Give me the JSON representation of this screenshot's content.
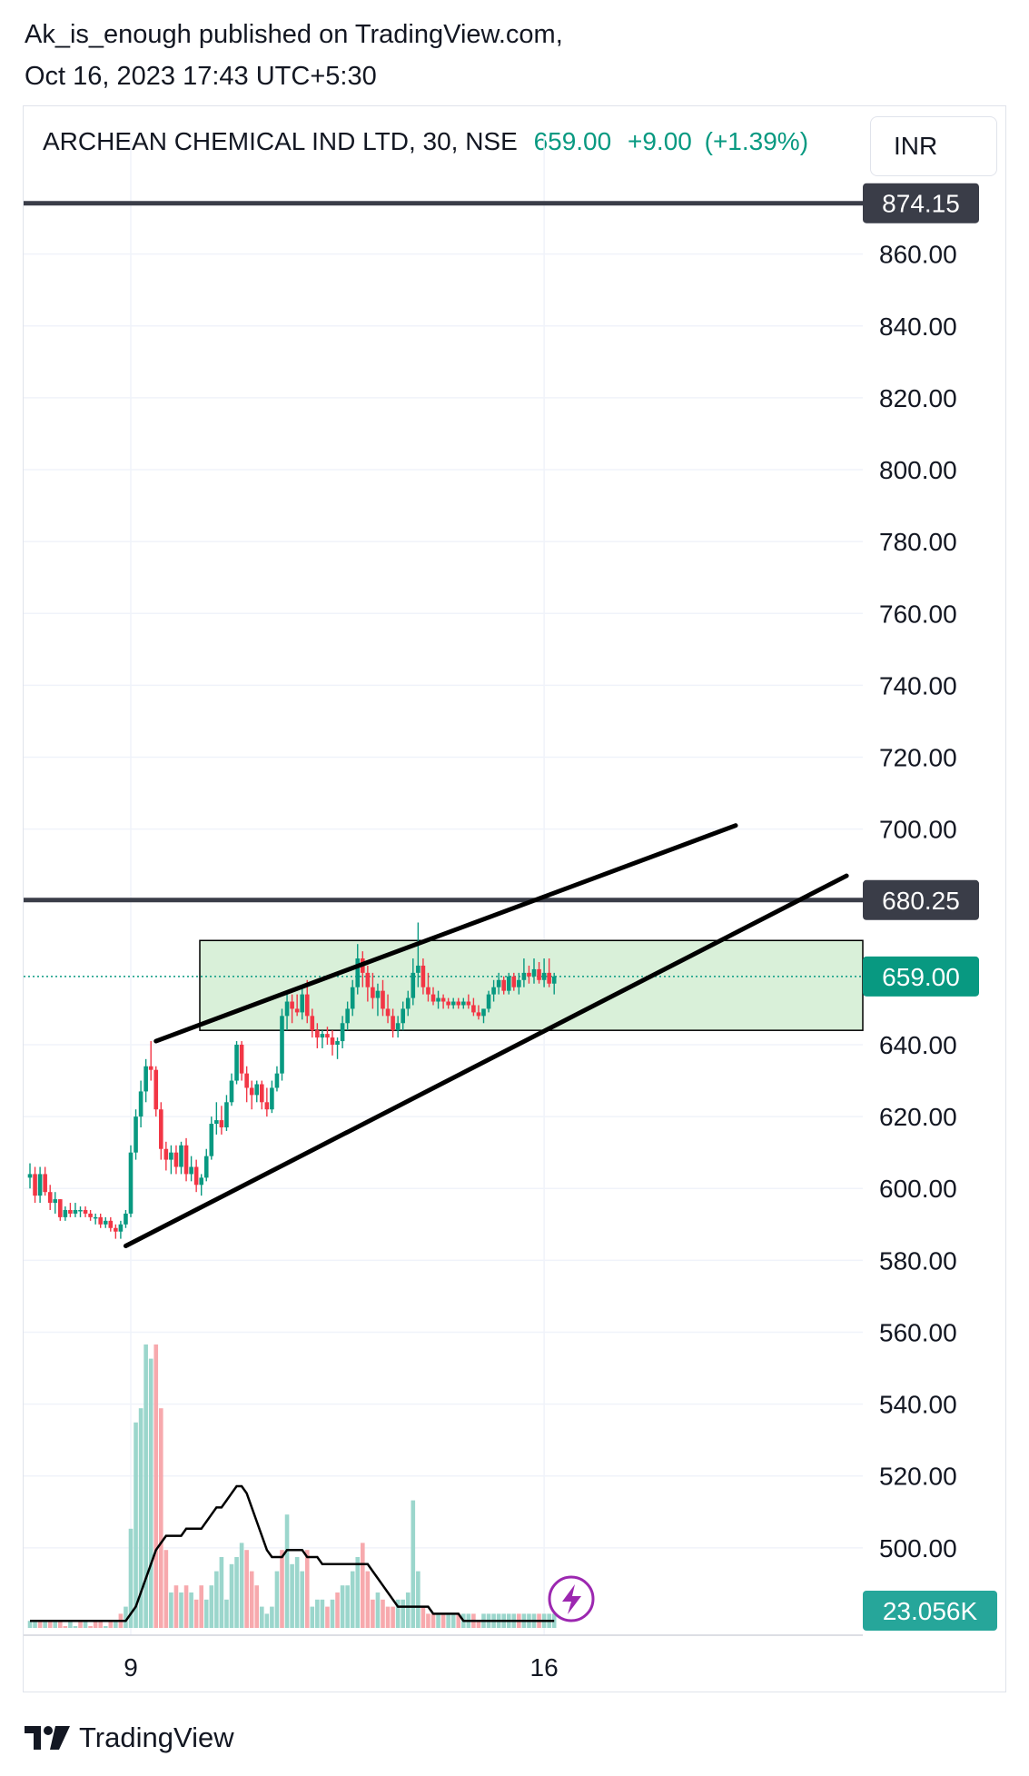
{
  "header": {
    "published_line": "Ak_is_enough published on TradingView.com,",
    "date_line": "Oct 16, 2023 17:43 UTC+5:30"
  },
  "legend": {
    "symbol": "ARCHEAN CHEMICAL IND LTD, 30, NSE",
    "last": "659.00",
    "change": "+9.00",
    "change_pct": "(+1.39%)",
    "currency": "INR"
  },
  "colors": {
    "up": "#089981",
    "down": "#f23645",
    "up_volume": "#9bd6cc",
    "down_volume": "#f7a9ad",
    "rect_fill": "#d9f0d9",
    "level_line": "#3a3d48",
    "grid": "#f0f3fa"
  },
  "chart_data": {
    "type": "candlestick",
    "y_axis_labels": [
      "860.00",
      "840.00",
      "820.00",
      "800.00",
      "780.00",
      "760.00",
      "740.00",
      "720.00",
      "700.00",
      "640.00",
      "620.00",
      "600.00",
      "580.00",
      "560.00",
      "540.00",
      "520.00",
      "500.00"
    ],
    "x_axis_labels": [
      {
        "label": "9",
        "bar": 20
      },
      {
        "label": "16",
        "bar": 102
      }
    ],
    "price_tags": [
      {
        "label": "874.15",
        "value": 874.15,
        "kind": "level"
      },
      {
        "label": "680.25",
        "value": 680.25,
        "kind": "level"
      },
      {
        "label": "659.00",
        "value": 659.0,
        "kind": "last"
      },
      {
        "label": "23.056K",
        "kind": "volume"
      }
    ],
    "horizontal_lines": [
      874.15,
      680.25
    ],
    "current_price": 659.0,
    "rectangle": {
      "from_bar": 38,
      "to_bar": 180,
      "top": 669,
      "bottom": 644
    },
    "trendlines": [
      {
        "from": [
          25,
          641
        ],
        "to": [
          140,
          701
        ]
      },
      {
        "from": [
          19,
          584
        ],
        "to": [
          162,
          687
        ]
      }
    ],
    "candles": [
      [
        603,
        607,
        600,
        604
      ],
      [
        604,
        606,
        596,
        598
      ],
      [
        598,
        606,
        596,
        604
      ],
      [
        604,
        606,
        598,
        599
      ],
      [
        599,
        601,
        594,
        596
      ],
      [
        596,
        599,
        593,
        597
      ],
      [
        597,
        597,
        591,
        592
      ],
      [
        592,
        595,
        591,
        594
      ],
      [
        594,
        596,
        592,
        593
      ],
      [
        593,
        596,
        592,
        594
      ],
      [
        594,
        595,
        592,
        594
      ],
      [
        594,
        595,
        592,
        593
      ],
      [
        593,
        594,
        591,
        592
      ],
      [
        592,
        593,
        590,
        592
      ],
      [
        592,
        593,
        589,
        590
      ],
      [
        590,
        592,
        589,
        591
      ],
      [
        591,
        592,
        588,
        589
      ],
      [
        589,
        590,
        586,
        588
      ],
      [
        588,
        591,
        586,
        590
      ],
      [
        590,
        594,
        589,
        593
      ],
      [
        593,
        612,
        592,
        610
      ],
      [
        610,
        622,
        608,
        620
      ],
      [
        620,
        630,
        617,
        627
      ],
      [
        627,
        636,
        624,
        634
      ],
      [
        634,
        641,
        630,
        633
      ],
      [
        633,
        634,
        620,
        622
      ],
      [
        622,
        624,
        608,
        611
      ],
      [
        611,
        613,
        605,
        608
      ],
      [
        608,
        612,
        604,
        610
      ],
      [
        610,
        612,
        604,
        606
      ],
      [
        606,
        613,
        604,
        612
      ],
      [
        612,
        614,
        602,
        604
      ],
      [
        604,
        609,
        602,
        606
      ],
      [
        606,
        608,
        599,
        601
      ],
      [
        601,
        604,
        598,
        603
      ],
      [
        603,
        611,
        602,
        609
      ],
      [
        609,
        620,
        608,
        618
      ],
      [
        618,
        624,
        615,
        619
      ],
      [
        619,
        623,
        615,
        617
      ],
      [
        617,
        626,
        616,
        624
      ],
      [
        624,
        632,
        623,
        630
      ],
      [
        630,
        641,
        629,
        640
      ],
      [
        640,
        641,
        630,
        632
      ],
      [
        632,
        634,
        624,
        628
      ],
      [
        628,
        630,
        622,
        626
      ],
      [
        626,
        630,
        624,
        629
      ],
      [
        629,
        630,
        622,
        624
      ],
      [
        624,
        628,
        620,
        622
      ],
      [
        622,
        630,
        621,
        628
      ],
      [
        628,
        634,
        627,
        632
      ],
      [
        632,
        650,
        630,
        648
      ],
      [
        648,
        654,
        644,
        652
      ],
      [
        652,
        654,
        646,
        650
      ],
      [
        650,
        654,
        648,
        649
      ],
      [
        649,
        656,
        647,
        654
      ],
      [
        654,
        658,
        646,
        648
      ],
      [
        648,
        650,
        642,
        644
      ],
      [
        644,
        646,
        639,
        642
      ],
      [
        642,
        644,
        639,
        643
      ],
      [
        643,
        645,
        640,
        642
      ],
      [
        642,
        644,
        637,
        640
      ],
      [
        640,
        642,
        636,
        641
      ],
      [
        641,
        648,
        639,
        646
      ],
      [
        646,
        652,
        644,
        650
      ],
      [
        650,
        658,
        648,
        656
      ],
      [
        656,
        668,
        654,
        664
      ],
      [
        664,
        666,
        656,
        660
      ],
      [
        660,
        662,
        652,
        656
      ],
      [
        656,
        660,
        650,
        653
      ],
      [
        653,
        657,
        648,
        655
      ],
      [
        655,
        658,
        648,
        650
      ],
      [
        650,
        654,
        646,
        648
      ],
      [
        648,
        650,
        642,
        644
      ],
      [
        644,
        648,
        642,
        646
      ],
      [
        646,
        652,
        644,
        650
      ],
      [
        650,
        655,
        648,
        653
      ],
      [
        653,
        664,
        651,
        660
      ],
      [
        660,
        674,
        656,
        662
      ],
      [
        662,
        664,
        654,
        656
      ],
      [
        656,
        660,
        652,
        654
      ],
      [
        654,
        656,
        651,
        652
      ],
      [
        652,
        655,
        650,
        653
      ],
      [
        653,
        654,
        650,
        652
      ],
      [
        652,
        653,
        650,
        651
      ],
      [
        651,
        653,
        650,
        652
      ],
      [
        652,
        653,
        650,
        651
      ],
      [
        651,
        653,
        650,
        652
      ],
      [
        652,
        654,
        650,
        651
      ],
      [
        651,
        653,
        648,
        649
      ],
      [
        649,
        651,
        647,
        648
      ],
      [
        648,
        650,
        646,
        650
      ],
      [
        650,
        655,
        649,
        654
      ],
      [
        654,
        658,
        652,
        656
      ],
      [
        656,
        660,
        654,
        658
      ],
      [
        658,
        659,
        654,
        655
      ],
      [
        655,
        660,
        654,
        659
      ],
      [
        659,
        660,
        655,
        656
      ],
      [
        656,
        660,
        654,
        658
      ],
      [
        658,
        664,
        656,
        660
      ],
      [
        660,
        662,
        657,
        659
      ],
      [
        659,
        664,
        657,
        661
      ],
      [
        661,
        663,
        657,
        658
      ],
      [
        658,
        664,
        656,
        660
      ],
      [
        660,
        664,
        656,
        657
      ],
      [
        657,
        660,
        654,
        659
      ]
    ],
    "volumes": [
      [
        1,
        1
      ],
      [
        1,
        1
      ],
      [
        1,
        0
      ],
      [
        1,
        1
      ],
      [
        1,
        0
      ],
      [
        1,
        1
      ],
      [
        1,
        0
      ],
      [
        0,
        0
      ],
      [
        1,
        1
      ],
      [
        0,
        1
      ],
      [
        1,
        0
      ],
      [
        1,
        1
      ],
      [
        0,
        0
      ],
      [
        1,
        0
      ],
      [
        1,
        0
      ],
      [
        0,
        1
      ],
      [
        1,
        0
      ],
      [
        1,
        1
      ],
      [
        2,
        0
      ],
      [
        3,
        1
      ],
      [
        14,
        1
      ],
      [
        29,
        1
      ],
      [
        31,
        1
      ],
      [
        40,
        1
      ],
      [
        38,
        1
      ],
      [
        40,
        0
      ],
      [
        31,
        0
      ],
      [
        11,
        0
      ],
      [
        5,
        1
      ],
      [
        6,
        0
      ],
      [
        5,
        1
      ],
      [
        6,
        0
      ],
      [
        5,
        1
      ],
      [
        4,
        0
      ],
      [
        6,
        0
      ],
      [
        4,
        1
      ],
      [
        6,
        1
      ],
      [
        8,
        1
      ],
      [
        10,
        1
      ],
      [
        4,
        1
      ],
      [
        9,
        1
      ],
      [
        10,
        1
      ],
      [
        12,
        1
      ],
      [
        11,
        0
      ],
      [
        8,
        0
      ],
      [
        6,
        0
      ],
      [
        3,
        1
      ],
      [
        2,
        1
      ],
      [
        3,
        1
      ],
      [
        8,
        1
      ],
      [
        11,
        0
      ],
      [
        16,
        1
      ],
      [
        9,
        1
      ],
      [
        10,
        1
      ],
      [
        8,
        1
      ],
      [
        11,
        0
      ],
      [
        3,
        1
      ],
      [
        4,
        1
      ],
      [
        4,
        1
      ],
      [
        3,
        0
      ],
      [
        4,
        1
      ],
      [
        5,
        0
      ],
      [
        6,
        1
      ],
      [
        6,
        1
      ],
      [
        8,
        1
      ],
      [
        10,
        1
      ],
      [
        12,
        0
      ],
      [
        8,
        0
      ],
      [
        4,
        0
      ],
      [
        5,
        1
      ],
      [
        4,
        0
      ],
      [
        3,
        0
      ],
      [
        3,
        0
      ],
      [
        4,
        1
      ],
      [
        4,
        1
      ],
      [
        5,
        1
      ],
      [
        18,
        1
      ],
      [
        8,
        1
      ],
      [
        3,
        0
      ],
      [
        2,
        0
      ],
      [
        2,
        0
      ],
      [
        2,
        1
      ],
      [
        2,
        0
      ],
      [
        2,
        1
      ],
      [
        2,
        1
      ],
      [
        2,
        0
      ],
      [
        2,
        1
      ],
      [
        2,
        1
      ],
      [
        2,
        0
      ],
      [
        1,
        0
      ],
      [
        2,
        1
      ],
      [
        2,
        1
      ],
      [
        2,
        1
      ],
      [
        2,
        1
      ],
      [
        2,
        1
      ],
      [
        2,
        1
      ],
      [
        2,
        1
      ],
      [
        2,
        0
      ],
      [
        2,
        1
      ],
      [
        2,
        1
      ],
      [
        2,
        1
      ],
      [
        2,
        0
      ],
      [
        2,
        1
      ],
      [
        2,
        1
      ],
      [
        2,
        1
      ]
    ],
    "volume_ma": [
      1,
      1,
      1,
      1,
      1,
      1,
      1,
      1,
      1,
      1,
      1,
      1,
      1,
      1,
      1,
      1,
      1,
      1,
      1,
      1,
      2,
      3,
      5,
      7,
      9,
      11,
      12,
      13,
      13,
      13,
      13,
      14,
      14,
      14,
      14,
      15,
      16,
      17,
      17,
      18,
      19,
      20,
      20,
      19,
      17,
      15,
      13,
      11,
      10,
      10,
      10,
      11,
      11,
      11,
      11,
      10,
      10,
      10,
      9,
      9,
      9,
      9,
      9,
      9,
      9,
      9,
      9,
      9,
      8,
      7,
      6,
      5,
      4,
      3,
      3,
      3,
      3,
      3,
      3,
      3,
      2,
      2,
      2,
      2,
      2,
      2,
      1,
      1,
      1,
      1,
      1,
      1,
      1,
      1,
      1,
      1,
      1,
      1,
      1,
      1,
      1,
      1,
      1,
      1,
      1
    ]
  }
}
